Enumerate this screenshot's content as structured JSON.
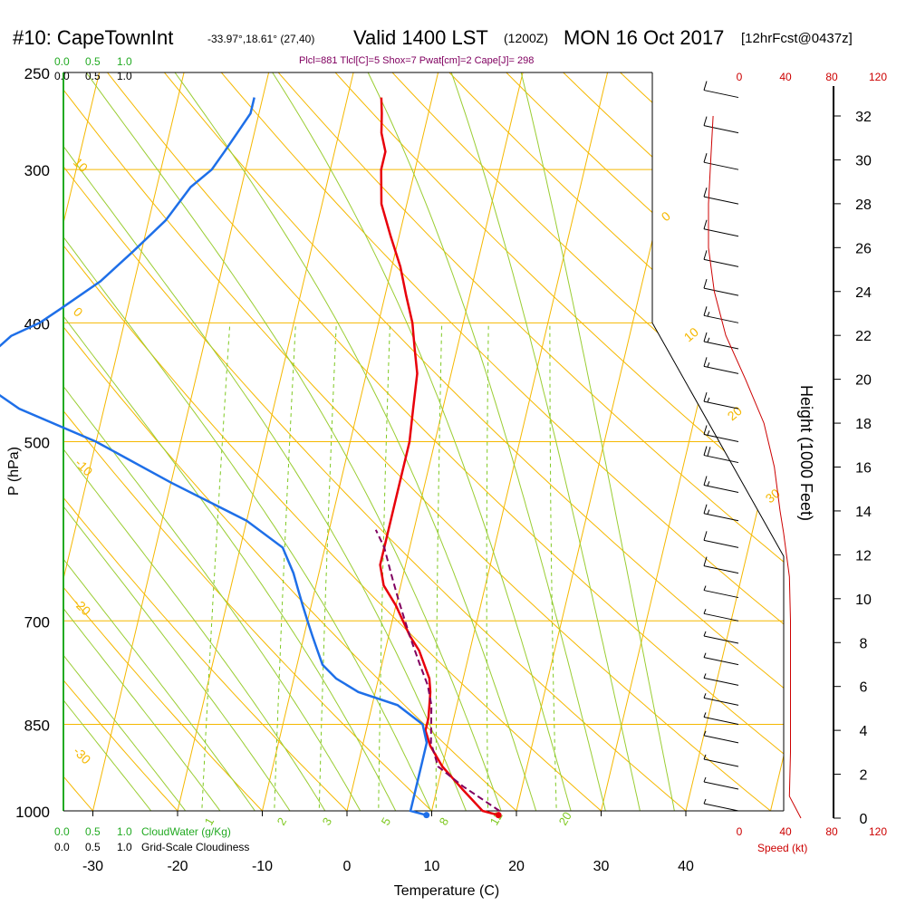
{
  "header": {
    "station": "#10: CapeTownInt",
    "coords": "-33.97°,18.61° (27,40)",
    "valid": "Valid 1400 LST",
    "zulu": "(1200Z)",
    "date": "MON 16 Oct 2017",
    "fcst": "[12hrFcst@0437z]"
  },
  "indices": "Plcl=881 Tlcl[C]=5 Shox=7 Pwat[cm]=2 Cape[J]= 298",
  "cloud_scale": {
    "top_green": [
      "0.0",
      "0.5",
      "1.0"
    ],
    "top_black": [
      "0.0",
      "0.5",
      "1.0"
    ],
    "bottom_green": [
      "0.0",
      "0.5",
      "1.0"
    ],
    "bottom_black": [
      "0.0",
      "0.5",
      "1.0"
    ],
    "cloudwater_label": "CloudWater (g/Kg)",
    "cloudiness_label": "Grid-Scale Cloudiness"
  },
  "speed_axis": {
    "ticks": [
      "0",
      "40",
      "80",
      "120"
    ],
    "label": "Speed (kt)"
  },
  "colors": {
    "isotherm": "#f5b800",
    "dry_adiabat": "#f5b800",
    "moist_adiabat": "#9acd32",
    "mixing_ratio": "#7ec820",
    "temperature": "#e8000b",
    "dewpoint": "#1e6fe8",
    "parcel": "#800060",
    "speed": "#cc0000",
    "cloud_green": "#22aa22"
  },
  "chart_data": {
    "type": "line",
    "title": "#10: CapeTownInt  Valid 1400 LST (1200Z) MON 16 Oct 2017 [12hrFcst@0437z]",
    "xlabel": "Temperature (C)",
    "ylabel": "P (hPa)",
    "y2label": "Height (1000 Feet)",
    "x_ticks": [
      -30,
      -20,
      -10,
      0,
      10,
      20,
      30,
      40
    ],
    "p_ticks": [
      250,
      300,
      400,
      500,
      700,
      850,
      1000
    ],
    "height_ticks": [
      0,
      2,
      4,
      6,
      8,
      10,
      12,
      14,
      16,
      18,
      20,
      22,
      24,
      26,
      28,
      30,
      32
    ],
    "dry_adiabat_labels": [
      "10",
      "0",
      "-10",
      "-20",
      "-30",
      "0",
      "10",
      "20",
      "30"
    ],
    "mixing_ratio_labels": [
      "1",
      "2",
      "3",
      "5",
      "8",
      "12",
      "20"
    ],
    "series": [
      {
        "name": "Temperature",
        "points": [
          [
            18.0,
            1008
          ],
          [
            16,
            1000
          ],
          [
            13,
            960
          ],
          [
            10,
            920
          ],
          [
            8,
            885
          ],
          [
            7,
            860
          ],
          [
            7,
            840
          ],
          [
            6.5,
            800
          ],
          [
            6,
            780
          ],
          [
            4,
            740
          ],
          [
            2.5,
            720
          ],
          [
            0,
            680
          ],
          [
            -2,
            655
          ],
          [
            -3,
            630
          ],
          [
            -3,
            590
          ],
          [
            -3,
            560
          ],
          [
            -3,
            520
          ],
          [
            -3,
            500
          ],
          [
            -3.5,
            470
          ],
          [
            -4,
            440
          ],
          [
            -5,
            420
          ],
          [
            -6,
            400
          ],
          [
            -7.5,
            380
          ],
          [
            -9,
            360
          ],
          [
            -11,
            340
          ],
          [
            -13,
            320
          ],
          [
            -14,
            300
          ],
          [
            -14,
            290
          ],
          [
            -15,
            280
          ],
          [
            -15.5,
            270
          ],
          [
            -16,
            262
          ]
        ]
      },
      {
        "name": "Dewpoint",
        "points": [
          [
            9.5,
            1008
          ],
          [
            7.5,
            1000
          ],
          [
            7.5,
            950
          ],
          [
            7.5,
            920
          ],
          [
            7.5,
            880
          ],
          [
            6.5,
            850
          ],
          [
            3,
            820
          ],
          [
            -2,
            800
          ],
          [
            -5,
            780
          ],
          [
            -7,
            760
          ],
          [
            -8,
            740
          ],
          [
            -9,
            720
          ],
          [
            -10,
            700
          ],
          [
            -11,
            680
          ],
          [
            -12,
            660
          ],
          [
            -13,
            640
          ],
          [
            -15,
            610
          ],
          [
            -20,
            580
          ],
          [
            -30,
            540
          ],
          [
            -40,
            500
          ],
          [
            -50,
            470
          ],
          [
            -57,
            440
          ],
          [
            -55,
            425
          ],
          [
            -53,
            410
          ],
          [
            -50,
            400
          ],
          [
            -48,
            390
          ],
          [
            -44,
            370
          ],
          [
            -41,
            350
          ],
          [
            -38,
            330
          ],
          [
            -36,
            310
          ],
          [
            -34,
            300
          ],
          [
            -33,
            290
          ],
          [
            -32,
            280
          ],
          [
            -31,
            270
          ],
          [
            -31,
            262
          ]
        ]
      },
      {
        "name": "Parcel",
        "points": [
          [
            18,
            1000
          ],
          [
            13,
            955
          ],
          [
            9.5,
            920
          ],
          [
            8,
            880
          ],
          [
            7.5,
            850
          ],
          [
            7,
            820
          ],
          [
            6,
            790
          ],
          [
            4.5,
            760
          ],
          [
            3,
            730
          ],
          [
            1.5,
            700
          ],
          [
            0,
            670
          ],
          [
            -1.5,
            640
          ],
          [
            -3,
            610
          ],
          [
            -4.5,
            590
          ]
        ]
      }
    ],
    "sfc_temp": 18.0,
    "sfc_dewpoint": 9.5,
    "wind_speed_kt": [
      [
        1000,
        5
      ],
      [
        960,
        6
      ],
      [
        920,
        6
      ],
      [
        880,
        7
      ],
      [
        850,
        7
      ],
      [
        820,
        6
      ],
      [
        790,
        6
      ],
      [
        760,
        7
      ],
      [
        730,
        7
      ],
      [
        700,
        8
      ],
      [
        670,
        9
      ],
      [
        640,
        10
      ],
      [
        610,
        13
      ],
      [
        580,
        15
      ],
      [
        550,
        18
      ],
      [
        520,
        20
      ],
      [
        500,
        19
      ],
      [
        470,
        18
      ],
      [
        440,
        17
      ],
      [
        420,
        16
      ],
      [
        400,
        15
      ],
      [
        380,
        14
      ],
      [
        360,
        14
      ],
      [
        340,
        14
      ],
      [
        320,
        14
      ],
      [
        300,
        14
      ],
      [
        280,
        14
      ],
      [
        262,
        14
      ]
    ],
    "speed_profile": [
      [
        0,
        20
      ],
      [
        1,
        10
      ],
      [
        3,
        11
      ],
      [
        5,
        11
      ],
      [
        7,
        11
      ],
      [
        9,
        11
      ],
      [
        11,
        10
      ],
      [
        13,
        5
      ],
      [
        14,
        2
      ],
      [
        16,
        -3
      ],
      [
        18,
        -12
      ],
      [
        20,
        -28
      ],
      [
        22,
        -45
      ],
      [
        24,
        -55
      ],
      [
        26,
        -60
      ],
      [
        28,
        -60
      ],
      [
        30,
        -58
      ],
      [
        32,
        -56
      ]
    ]
  }
}
